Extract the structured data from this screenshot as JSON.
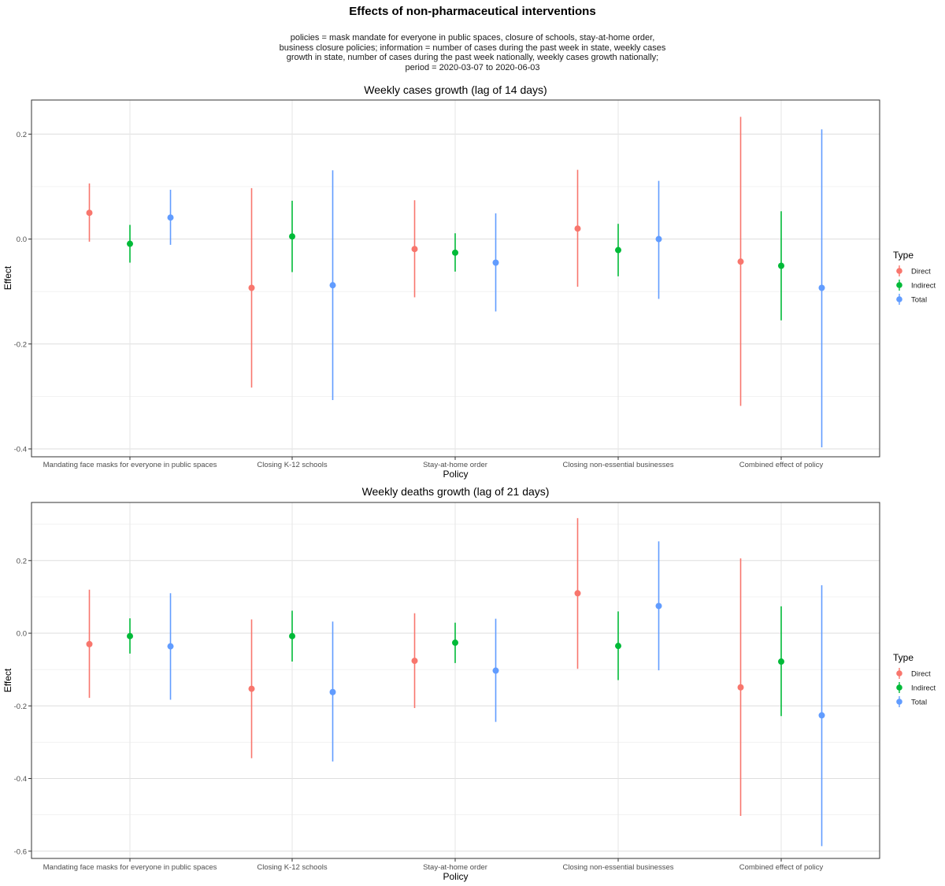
{
  "figure": {
    "title": "Effects of non-pharmaceutical interventions",
    "subtitle_lines": [
      "policies = mask mandate for everyone in public spaces, closure of schools, stay-at-home order,",
      "business closure policies; information = number of cases during the past week in state, weekly cases",
      "growth in state, number of cases during the past week nationally, weekly cases growth nationally;",
      "period = 2020-03-07 to 2020-06-03"
    ]
  },
  "colors": {
    "Direct": "#F8766D",
    "Indirect": "#00BA38",
    "Total": "#619CFF"
  },
  "chart_data": [
    {
      "type": "scatter",
      "title": "Weekly cases growth (lag of 14 days)",
      "xlabel": "Policy",
      "ylabel": "Effect",
      "legend_title": "Type",
      "legend_position": "right",
      "grid": true,
      "ylim": [
        -0.415,
        0.265
      ],
      "yticks": [
        -0.4,
        -0.2,
        0.0,
        0.2
      ],
      "ytick_labels": [
        "-0.4",
        "-0.2",
        "0.0",
        "0.2"
      ],
      "categories": [
        "Mandating face masks for everyone in public spaces",
        "Closing K-12 schools",
        "Stay-at-home order",
        "Closing non-essential businesses",
        "Combined effect of policy"
      ],
      "series": [
        {
          "name": "Direct",
          "values": [
            0.05,
            -0.093,
            -0.019,
            0.02,
            -0.043
          ],
          "lower": [
            -0.005,
            -0.283,
            -0.111,
            -0.091,
            -0.318
          ],
          "upper": [
            0.106,
            0.097,
            0.074,
            0.132,
            0.233
          ]
        },
        {
          "name": "Indirect",
          "values": [
            -0.009,
            0.005,
            -0.026,
            -0.021,
            -0.051
          ],
          "lower": [
            -0.045,
            -0.063,
            -0.062,
            -0.071,
            -0.155
          ],
          "upper": [
            0.027,
            0.073,
            0.011,
            0.029,
            0.053
          ]
        },
        {
          "name": "Total",
          "values": [
            0.041,
            -0.088,
            -0.045,
            0.0,
            -0.093
          ],
          "lower": [
            -0.011,
            -0.307,
            -0.138,
            -0.114,
            -0.397
          ],
          "upper": [
            0.094,
            0.131,
            0.049,
            0.111,
            0.209
          ]
        }
      ]
    },
    {
      "type": "scatter",
      "title": "Weekly deaths growth (lag of 21 days)",
      "xlabel": "Policy",
      "ylabel": "Effect",
      "legend_title": "Type",
      "legend_position": "right",
      "grid": true,
      "ylim": [
        -0.62,
        0.36
      ],
      "yticks": [
        -0.6,
        -0.4,
        -0.2,
        0.0,
        0.2
      ],
      "ytick_labels": [
        "-0.6",
        "-0.4",
        "-0.2",
        "0.0",
        "0.2"
      ],
      "categories": [
        "Mandating face masks for everyone in public spaces",
        "Closing K-12 schools",
        "Stay-at-home order",
        "Closing non-essential businesses",
        "Combined effect of policy"
      ],
      "series": [
        {
          "name": "Direct",
          "values": [
            -0.03,
            -0.153,
            -0.076,
            0.11,
            -0.149
          ],
          "lower": [
            -0.178,
            -0.344,
            -0.206,
            -0.098,
            -0.503
          ],
          "upper": [
            0.12,
            0.038,
            0.055,
            0.317,
            0.206
          ]
        },
        {
          "name": "Indirect",
          "values": [
            -0.008,
            -0.008,
            -0.026,
            -0.035,
            -0.078
          ],
          "lower": [
            -0.056,
            -0.078,
            -0.082,
            -0.129,
            -0.228
          ],
          "upper": [
            0.041,
            0.062,
            0.029,
            0.06,
            0.074
          ]
        },
        {
          "name": "Total",
          "values": [
            -0.036,
            -0.162,
            -0.103,
            0.075,
            -0.226
          ],
          "lower": [
            -0.183,
            -0.353,
            -0.244,
            -0.102,
            -0.586
          ],
          "upper": [
            0.11,
            0.032,
            0.04,
            0.253,
            0.132
          ]
        }
      ]
    }
  ]
}
